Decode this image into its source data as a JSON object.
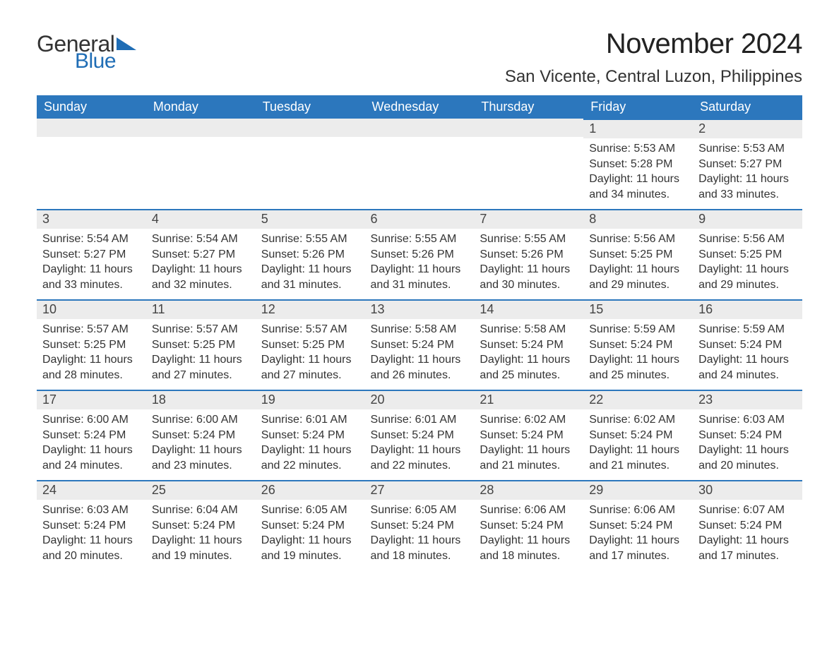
{
  "logo": {
    "text_general": "General",
    "text_blue": "Blue",
    "brand_color": "#1f6db5"
  },
  "title": "November 2024",
  "subtitle": "San Vicente, Central Luzon, Philippines",
  "colors": {
    "header_bg": "#2c77bd",
    "header_text": "#ffffff",
    "daynum_bg": "#ececec",
    "row_border": "#2c77bd",
    "body_text": "#333333",
    "page_bg": "#ffffff"
  },
  "weekdays": [
    "Sunday",
    "Monday",
    "Tuesday",
    "Wednesday",
    "Thursday",
    "Friday",
    "Saturday"
  ],
  "weeks": [
    [
      null,
      null,
      null,
      null,
      null,
      {
        "n": "1",
        "sunrise": "5:53 AM",
        "sunset": "5:28 PM",
        "daylight": "11 hours and 34 minutes."
      },
      {
        "n": "2",
        "sunrise": "5:53 AM",
        "sunset": "5:27 PM",
        "daylight": "11 hours and 33 minutes."
      }
    ],
    [
      {
        "n": "3",
        "sunrise": "5:54 AM",
        "sunset": "5:27 PM",
        "daylight": "11 hours and 33 minutes."
      },
      {
        "n": "4",
        "sunrise": "5:54 AM",
        "sunset": "5:27 PM",
        "daylight": "11 hours and 32 minutes."
      },
      {
        "n": "5",
        "sunrise": "5:55 AM",
        "sunset": "5:26 PM",
        "daylight": "11 hours and 31 minutes."
      },
      {
        "n": "6",
        "sunrise": "5:55 AM",
        "sunset": "5:26 PM",
        "daylight": "11 hours and 31 minutes."
      },
      {
        "n": "7",
        "sunrise": "5:55 AM",
        "sunset": "5:26 PM",
        "daylight": "11 hours and 30 minutes."
      },
      {
        "n": "8",
        "sunrise": "5:56 AM",
        "sunset": "5:25 PM",
        "daylight": "11 hours and 29 minutes."
      },
      {
        "n": "9",
        "sunrise": "5:56 AM",
        "sunset": "5:25 PM",
        "daylight": "11 hours and 29 minutes."
      }
    ],
    [
      {
        "n": "10",
        "sunrise": "5:57 AM",
        "sunset": "5:25 PM",
        "daylight": "11 hours and 28 minutes."
      },
      {
        "n": "11",
        "sunrise": "5:57 AM",
        "sunset": "5:25 PM",
        "daylight": "11 hours and 27 minutes."
      },
      {
        "n": "12",
        "sunrise": "5:57 AM",
        "sunset": "5:25 PM",
        "daylight": "11 hours and 27 minutes."
      },
      {
        "n": "13",
        "sunrise": "5:58 AM",
        "sunset": "5:24 PM",
        "daylight": "11 hours and 26 minutes."
      },
      {
        "n": "14",
        "sunrise": "5:58 AM",
        "sunset": "5:24 PM",
        "daylight": "11 hours and 25 minutes."
      },
      {
        "n": "15",
        "sunrise": "5:59 AM",
        "sunset": "5:24 PM",
        "daylight": "11 hours and 25 minutes."
      },
      {
        "n": "16",
        "sunrise": "5:59 AM",
        "sunset": "5:24 PM",
        "daylight": "11 hours and 24 minutes."
      }
    ],
    [
      {
        "n": "17",
        "sunrise": "6:00 AM",
        "sunset": "5:24 PM",
        "daylight": "11 hours and 24 minutes."
      },
      {
        "n": "18",
        "sunrise": "6:00 AM",
        "sunset": "5:24 PM",
        "daylight": "11 hours and 23 minutes."
      },
      {
        "n": "19",
        "sunrise": "6:01 AM",
        "sunset": "5:24 PM",
        "daylight": "11 hours and 22 minutes."
      },
      {
        "n": "20",
        "sunrise": "6:01 AM",
        "sunset": "5:24 PM",
        "daylight": "11 hours and 22 minutes."
      },
      {
        "n": "21",
        "sunrise": "6:02 AM",
        "sunset": "5:24 PM",
        "daylight": "11 hours and 21 minutes."
      },
      {
        "n": "22",
        "sunrise": "6:02 AM",
        "sunset": "5:24 PM",
        "daylight": "11 hours and 21 minutes."
      },
      {
        "n": "23",
        "sunrise": "6:03 AM",
        "sunset": "5:24 PM",
        "daylight": "11 hours and 20 minutes."
      }
    ],
    [
      {
        "n": "24",
        "sunrise": "6:03 AM",
        "sunset": "5:24 PM",
        "daylight": "11 hours and 20 minutes."
      },
      {
        "n": "25",
        "sunrise": "6:04 AM",
        "sunset": "5:24 PM",
        "daylight": "11 hours and 19 minutes."
      },
      {
        "n": "26",
        "sunrise": "6:05 AM",
        "sunset": "5:24 PM",
        "daylight": "11 hours and 19 minutes."
      },
      {
        "n": "27",
        "sunrise": "6:05 AM",
        "sunset": "5:24 PM",
        "daylight": "11 hours and 18 minutes."
      },
      {
        "n": "28",
        "sunrise": "6:06 AM",
        "sunset": "5:24 PM",
        "daylight": "11 hours and 18 minutes."
      },
      {
        "n": "29",
        "sunrise": "6:06 AM",
        "sunset": "5:24 PM",
        "daylight": "11 hours and 17 minutes."
      },
      {
        "n": "30",
        "sunrise": "6:07 AM",
        "sunset": "5:24 PM",
        "daylight": "11 hours and 17 minutes."
      }
    ]
  ],
  "labels": {
    "sunrise": "Sunrise: ",
    "sunset": "Sunset: ",
    "daylight": "Daylight: "
  }
}
